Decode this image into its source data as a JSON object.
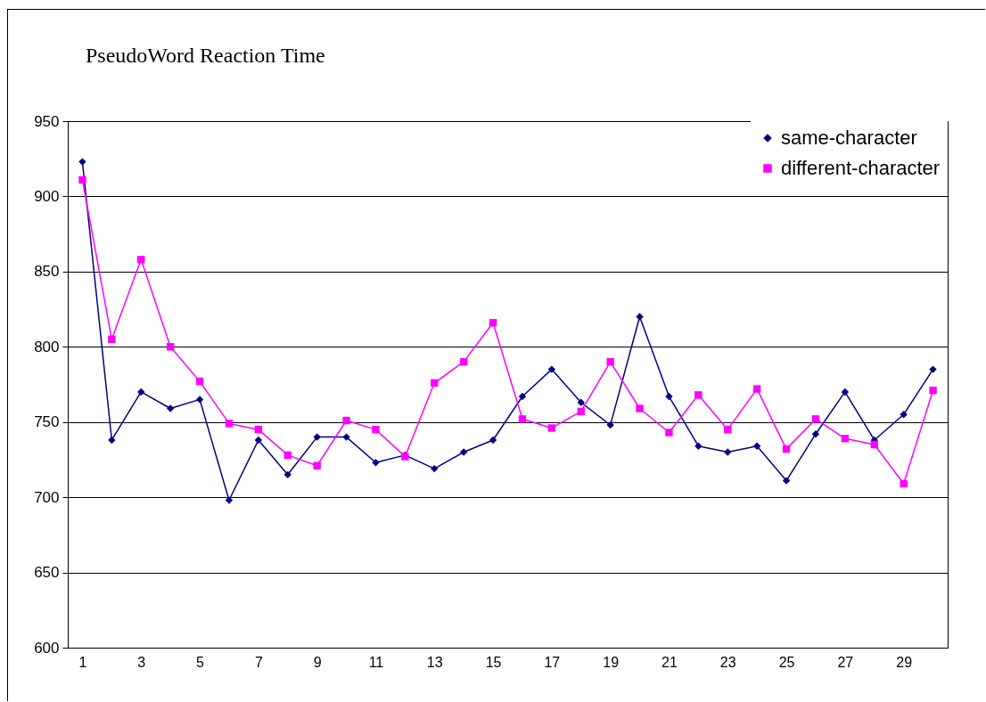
{
  "chart_data": {
    "type": "line",
    "title": "PseudoWord Reaction Time",
    "x": [
      1,
      2,
      3,
      4,
      5,
      6,
      7,
      8,
      9,
      10,
      11,
      12,
      13,
      14,
      15,
      16,
      17,
      18,
      19,
      20,
      21,
      22,
      23,
      24,
      25,
      26,
      27,
      28,
      29,
      30
    ],
    "xlim": [
      0.5,
      30.5
    ],
    "xticks": [
      1,
      3,
      5,
      7,
      9,
      11,
      13,
      15,
      17,
      19,
      21,
      23,
      25,
      27,
      29
    ],
    "series": [
      {
        "name": "same-character",
        "color": "#000080",
        "marker": "diamond",
        "values": [
          923,
          738,
          770,
          759,
          765,
          698,
          738,
          715,
          740,
          740,
          723,
          728,
          719,
          730,
          738,
          767,
          785,
          763,
          748,
          820,
          767,
          734,
          730,
          734,
          711,
          742,
          770,
          738,
          755,
          785
        ]
      },
      {
        "name": "different-character",
        "color": "#ff00ff",
        "marker": "square",
        "values": [
          911,
          805,
          858,
          800,
          777,
          749,
          745,
          728,
          721,
          751,
          745,
          727,
          776,
          790,
          816,
          752,
          746,
          757,
          790,
          759,
          743,
          768,
          745,
          772,
          732,
          752,
          739,
          735,
          709,
          771
        ]
      }
    ],
    "ylim": [
      600,
      950
    ],
    "yticks": [
      600,
      650,
      700,
      750,
      800,
      850,
      900,
      950
    ],
    "grid": "y",
    "legend": "top right"
  }
}
